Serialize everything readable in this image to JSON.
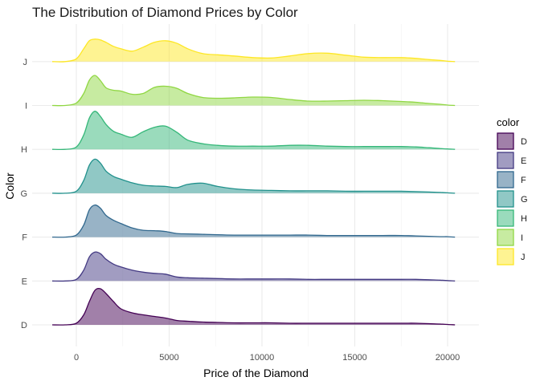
{
  "chart_data": {
    "type": "area",
    "subtype": "ridgeline-density",
    "title": "The Distribution of Diamond Prices by Color",
    "xlabel": "Price of the Diamond",
    "ylabel": "Color",
    "xlim": [
      -1300,
      21000
    ],
    "x_ticks": [
      0,
      5000,
      10000,
      15000,
      20000
    ],
    "x_tick_labels": [
      "0",
      "5000",
      "10000",
      "15000",
      "20000"
    ],
    "categories": [
      "D",
      "E",
      "F",
      "G",
      "H",
      "I",
      "J"
    ],
    "legend": {
      "title": "color",
      "position": "right"
    },
    "fill_alpha": 0.5,
    "grid": true,
    "density_points_x": [
      -1300,
      -600,
      0,
      400,
      700,
      1000,
      1300,
      1600,
      2000,
      2400,
      3000,
      3600,
      4200,
      4800,
      5400,
      6000,
      6800,
      7600,
      8500,
      9500,
      10500,
      11500,
      12500,
      13500,
      14500,
      15500,
      16500,
      17500,
      18300,
      19000,
      19600,
      20000,
      20400
    ],
    "series": [
      {
        "name": "D",
        "color": "#440154",
        "density": [
          0.0,
          0.0,
          0.04,
          0.25,
          0.58,
          0.86,
          0.9,
          0.78,
          0.58,
          0.4,
          0.3,
          0.25,
          0.21,
          0.17,
          0.11,
          0.09,
          0.07,
          0.06,
          0.05,
          0.05,
          0.05,
          0.04,
          0.04,
          0.04,
          0.04,
          0.04,
          0.04,
          0.04,
          0.04,
          0.03,
          0.02,
          0.01,
          0.0
        ]
      },
      {
        "name": "E",
        "color": "#443a83",
        "density": [
          0.0,
          0.0,
          0.04,
          0.27,
          0.6,
          0.72,
          0.68,
          0.54,
          0.42,
          0.35,
          0.27,
          0.22,
          0.19,
          0.17,
          0.1,
          0.08,
          0.07,
          0.06,
          0.05,
          0.05,
          0.05,
          0.05,
          0.04,
          0.04,
          0.04,
          0.04,
          0.04,
          0.04,
          0.04,
          0.03,
          0.02,
          0.01,
          0.0
        ]
      },
      {
        "name": "F",
        "color": "#31688e",
        "density": [
          0.0,
          0.0,
          0.05,
          0.3,
          0.68,
          0.8,
          0.72,
          0.54,
          0.42,
          0.34,
          0.23,
          0.17,
          0.16,
          0.14,
          0.09,
          0.08,
          0.07,
          0.06,
          0.05,
          0.05,
          0.05,
          0.05,
          0.05,
          0.04,
          0.04,
          0.04,
          0.04,
          0.04,
          0.03,
          0.02,
          0.01,
          0.01,
          0.0
        ]
      },
      {
        "name": "G",
        "color": "#21918c",
        "density": [
          0.0,
          0.0,
          0.05,
          0.32,
          0.7,
          0.85,
          0.75,
          0.55,
          0.42,
          0.35,
          0.26,
          0.2,
          0.18,
          0.17,
          0.14,
          0.22,
          0.25,
          0.17,
          0.11,
          0.08,
          0.07,
          0.06,
          0.06,
          0.06,
          0.05,
          0.05,
          0.05,
          0.05,
          0.04,
          0.03,
          0.02,
          0.01,
          0.0
        ]
      },
      {
        "name": "H",
        "color": "#35b779",
        "density": [
          0.0,
          0.0,
          0.06,
          0.36,
          0.78,
          0.95,
          0.82,
          0.62,
          0.45,
          0.38,
          0.3,
          0.44,
          0.55,
          0.58,
          0.43,
          0.23,
          0.14,
          0.1,
          0.08,
          0.08,
          0.08,
          0.1,
          0.1,
          0.08,
          0.07,
          0.07,
          0.07,
          0.07,
          0.06,
          0.04,
          0.02,
          0.01,
          0.0
        ]
      },
      {
        "name": "I",
        "color": "#90d743",
        "density": [
          0.0,
          0.0,
          0.06,
          0.3,
          0.63,
          0.75,
          0.62,
          0.44,
          0.38,
          0.36,
          0.28,
          0.3,
          0.45,
          0.48,
          0.43,
          0.3,
          0.2,
          0.18,
          0.19,
          0.21,
          0.2,
          0.15,
          0.11,
          0.11,
          0.12,
          0.13,
          0.12,
          0.1,
          0.08,
          0.05,
          0.03,
          0.01,
          0.0
        ]
      },
      {
        "name": "J",
        "color": "#fde725",
        "density": [
          0.0,
          0.0,
          0.07,
          0.32,
          0.52,
          0.56,
          0.54,
          0.48,
          0.38,
          0.32,
          0.26,
          0.36,
          0.48,
          0.52,
          0.46,
          0.32,
          0.2,
          0.17,
          0.14,
          0.1,
          0.09,
          0.14,
          0.2,
          0.21,
          0.16,
          0.11,
          0.1,
          0.1,
          0.08,
          0.05,
          0.03,
          0.01,
          0.0
        ]
      }
    ]
  }
}
